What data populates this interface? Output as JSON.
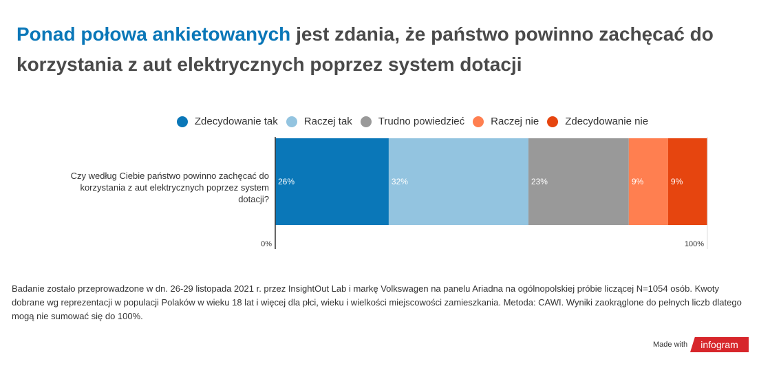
{
  "title": {
    "highlight": "Ponad połowa ankietowanych",
    "rest": " jest zdania, że państwo powinno zachęcać do korzystania z aut elektrycznych poprzez system dotacji"
  },
  "chart_data": {
    "type": "bar",
    "orientation": "horizontal-stacked",
    "categories": [
      "Czy według Ciebie państwo powinno zachęcać do korzystania z aut elektrycznych poprzez system dotacji?"
    ],
    "series": [
      {
        "name": "Zdecydowanie tak",
        "values": [
          26
        ],
        "color": "#0a77b8",
        "label": "26%"
      },
      {
        "name": "Raczej tak",
        "values": [
          32
        ],
        "color": "#93c4e0",
        "label": "32%"
      },
      {
        "name": "Trudno powiedzieć",
        "values": [
          23
        ],
        "color": "#999999",
        "label": "23%"
      },
      {
        "name": "Raczej nie",
        "values": [
          9
        ],
        "color": "#ff7f50",
        "label": "9%"
      },
      {
        "name": "Zdecydowanie nie",
        "values": [
          9
        ],
        "color": "#e6450f",
        "label": "9%"
      }
    ],
    "xlim": [
      0,
      100
    ],
    "xticks": [
      "0%",
      "100%"
    ],
    "legend": "top"
  },
  "footnote": "Badanie zostało przeprowadzone w dn. 26-29 listopada 2021 r. przez InsightOut Lab i markę Volkswagen na panelu Ariadna na ogólnopolskiej próbie liczącej N=1054 osób. Kwoty dobrane wg reprezentacji w populacji Polaków w wieku 18 lat i więcej dla płci, wieku i wielkości miejscowości zamieszkania. Metoda: CAWI. Wyniki zaokrąglone do pełnych liczb dlatego mogą nie sumować się do 100%.",
  "branding": {
    "made_with": "Made with",
    "logo": "infogram"
  }
}
